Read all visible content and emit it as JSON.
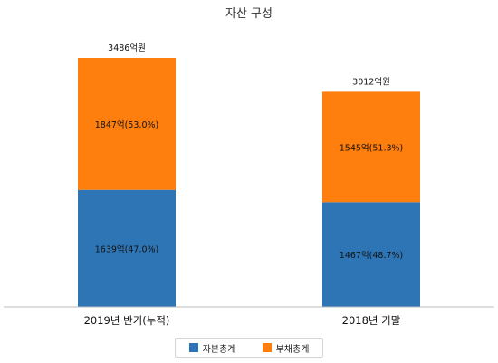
{
  "chart_data": {
    "type": "bar",
    "stacked": true,
    "title": "자산 구성",
    "categories": [
      "2019년 반기(누적)",
      "2018년 기말"
    ],
    "series": [
      {
        "name": "자본총계",
        "color": "#2E75B6",
        "values": [
          1639,
          1467
        ],
        "labels": [
          "1639억(47.0%)",
          "1467억(48.7%)"
        ]
      },
      {
        "name": "부채총계",
        "color": "#FF7F0E",
        "values": [
          1847,
          1545
        ],
        "labels": [
          "1847억(53.0%)",
          "1545억(51.3%)"
        ]
      }
    ],
    "totals": [
      3486,
      3012
    ],
    "total_labels": [
      "3486억원",
      "3012억원"
    ],
    "ylim": [
      0,
      3486
    ],
    "grid": false,
    "legend_position": "bottom"
  }
}
